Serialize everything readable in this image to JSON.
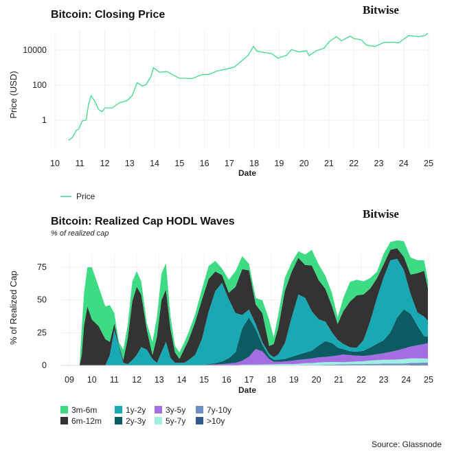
{
  "chart_data": [
    {
      "type": "line",
      "title": "Bitcoin: Closing Price",
      "brand": "Bitwise",
      "xlabel": "Date",
      "ylabel": "Price (USD)",
      "y_scale": "log",
      "yticks": [
        "1",
        "100",
        "10000"
      ],
      "xticks": [
        "10",
        "11",
        "12",
        "13",
        "14",
        "15",
        "16",
        "17",
        "18",
        "19",
        "20",
        "21",
        "22",
        "23",
        "24",
        "25"
      ],
      "legend_position": "bottom-left",
      "color": "#3ddc84",
      "series": [
        {
          "name": "Price",
          "points": [
            [
              2010.55,
              0.07
            ],
            [
              2010.7,
              0.1
            ],
            [
              2010.85,
              0.25
            ],
            [
              2010.95,
              0.3
            ],
            [
              2011.1,
              0.9
            ],
            [
              2011.25,
              1.0
            ],
            [
              2011.35,
              8.0
            ],
            [
              2011.45,
              25.0
            ],
            [
              2011.6,
              12.0
            ],
            [
              2011.75,
              4.0
            ],
            [
              2011.9,
              3.0
            ],
            [
              2012.0,
              5.0
            ],
            [
              2012.3,
              5.0
            ],
            [
              2012.6,
              10.0
            ],
            [
              2012.9,
              13.0
            ],
            [
              2013.1,
              25.0
            ],
            [
              2013.3,
              140.0
            ],
            [
              2013.5,
              90.0
            ],
            [
              2013.65,
              105.0
            ],
            [
              2013.85,
              300.0
            ],
            [
              2013.95,
              1000.0
            ],
            [
              2014.2,
              550.0
            ],
            [
              2014.5,
              600.0
            ],
            [
              2014.75,
              380.0
            ],
            [
              2015.0,
              250.0
            ],
            [
              2015.5,
              240.0
            ],
            [
              2015.9,
              400.0
            ],
            [
              2016.2,
              420.0
            ],
            [
              2016.5,
              650.0
            ],
            [
              2016.9,
              850.0
            ],
            [
              2017.2,
              1100.0
            ],
            [
              2017.5,
              2500.0
            ],
            [
              2017.75,
              5000.0
            ],
            [
              2017.97,
              17000.0
            ],
            [
              2018.1,
              9000.0
            ],
            [
              2018.4,
              7500.0
            ],
            [
              2018.7,
              6500.0
            ],
            [
              2018.96,
              3500.0
            ],
            [
              2019.3,
              5200.0
            ],
            [
              2019.5,
              11000.0
            ],
            [
              2019.8,
              8000.0
            ],
            [
              2020.1,
              9500.0
            ],
            [
              2020.2,
              5000.0
            ],
            [
              2020.5,
              9500.0
            ],
            [
              2020.8,
              13000.0
            ],
            [
              2021.0,
              30000.0
            ],
            [
              2021.3,
              60000.0
            ],
            [
              2021.5,
              35000.0
            ],
            [
              2021.85,
              65000.0
            ],
            [
              2022.0,
              47000.0
            ],
            [
              2022.3,
              40000.0
            ],
            [
              2022.5,
              20000.0
            ],
            [
              2022.85,
              16500.0
            ],
            [
              2023.2,
              28000.0
            ],
            [
              2023.6,
              29000.0
            ],
            [
              2023.8,
              27000.0
            ],
            [
              2024.0,
              43000.0
            ],
            [
              2024.2,
              70000.0
            ],
            [
              2024.6,
              60000.0
            ],
            [
              2024.85,
              70000.0
            ],
            [
              2024.97,
              95000.0
            ]
          ]
        }
      ]
    },
    {
      "type": "area",
      "stacked": true,
      "title": "Bitcoin: Realized Cap HODL Waves",
      "subtitle": "% of realized cap",
      "brand": "Bitwise",
      "xlabel": "Date",
      "ylabel": "% of Realized Cap",
      "ylim": [
        0,
        85
      ],
      "yticks": [
        "0",
        "25",
        "50",
        "75"
      ],
      "xticks": [
        "09",
        "10",
        "11",
        "12",
        "13",
        "14",
        "15",
        "16",
        "17",
        "18",
        "19",
        "20",
        "21",
        "22",
        "23",
        "24",
        "25"
      ],
      "legend_position": "bottom-left",
      "x": [
        2009.0,
        2009.3,
        2009.45,
        2009.55,
        2009.65,
        2009.8,
        2010.0,
        2010.3,
        2010.6,
        2010.8,
        2011.0,
        2011.2,
        2011.4,
        2011.6,
        2011.8,
        2012.0,
        2012.2,
        2012.45,
        2012.7,
        2012.9,
        2013.1,
        2013.3,
        2013.5,
        2013.7,
        2013.9,
        2014.1,
        2014.3,
        2014.6,
        2014.9,
        2015.2,
        2015.5,
        2015.8,
        2016.1,
        2016.4,
        2016.7,
        2017.0,
        2017.3,
        2017.6,
        2017.9,
        2018.1,
        2018.3,
        2018.6,
        2018.9,
        2019.2,
        2019.5,
        2019.8,
        2020.1,
        2020.4,
        2020.7,
        2020.95,
        2021.2,
        2021.5,
        2021.8,
        2022.1,
        2022.4,
        2022.7,
        2023.0,
        2023.3,
        2023.6,
        2023.9,
        2024.2,
        2024.5,
        2024.8,
        2024.97
      ],
      "series": [
        {
          "name": ">10y",
          "color": "#2f5b8f",
          "values": [
            0,
            0,
            0,
            0,
            0,
            0,
            0,
            0,
            0,
            0,
            0,
            0,
            0,
            0,
            0,
            0,
            0,
            0,
            0,
            0,
            0,
            0,
            0,
            0,
            0,
            0,
            0,
            0,
            0,
            0,
            0,
            0,
            0,
            0,
            0,
            0,
            0,
            0,
            0,
            0,
            0,
            0,
            0,
            0,
            0,
            0,
            0,
            0,
            0,
            0,
            0,
            0,
            0,
            0,
            0,
            0,
            0,
            0,
            0,
            0,
            0.5,
            0.5,
            0.6,
            0.6
          ]
        },
        {
          "name": "7y-10y",
          "color": "#6e8fc4",
          "values": [
            0,
            0,
            0,
            0,
            0,
            0,
            0,
            0,
            0,
            0,
            0,
            0,
            0,
            0,
            0,
            0,
            0,
            0,
            0,
            0,
            0,
            0,
            0,
            0,
            0,
            0,
            0,
            0,
            0,
            0,
            0,
            0,
            0,
            0,
            0,
            0,
            0,
            0,
            0,
            0,
            0,
            0,
            0,
            0,
            0.3,
            0.3,
            0.4,
            0.5,
            0.6,
            0.8,
            0.8,
            1,
            1,
            1,
            1.2,
            1.2,
            1.3,
            1.3,
            1.3,
            1.4,
            1.4,
            1.5,
            1.5,
            1.5
          ]
        },
        {
          "name": "5y-7y",
          "color": "#9ff0e2",
          "values": [
            0,
            0,
            0,
            0,
            0,
            0,
            0,
            0,
            0,
            0,
            0,
            0,
            0,
            0,
            0,
            0,
            0,
            0,
            0,
            0,
            0,
            0,
            0,
            0,
            0,
            0,
            0,
            0,
            0,
            0,
            0,
            0,
            0,
            0,
            0.5,
            0.6,
            0.6,
            0.7,
            0.8,
            0.8,
            1,
            1,
            1,
            1.2,
            1.4,
            1.5,
            1.8,
            2,
            2,
            1.8,
            1.6,
            1.8,
            2,
            2.2,
            2.5,
            2.8,
            3,
            3,
            3.2,
            3.5,
            3.5,
            3.4,
            3.2,
            3
          ]
        },
        {
          "name": "3y-5y",
          "color": "#a56de2",
          "values": [
            0,
            0,
            0,
            0,
            0,
            0,
            0,
            0,
            0,
            0,
            0,
            0,
            0,
            0,
            0,
            0,
            0,
            0,
            0,
            0,
            0,
            0,
            0,
            0,
            0,
            0,
            0,
            0,
            0,
            0.5,
            0.8,
            1,
            1.5,
            2,
            3,
            6,
            12,
            10,
            4,
            2,
            1.8,
            2,
            2.5,
            3,
            3,
            3.5,
            4,
            4,
            4.5,
            5,
            6,
            5,
            4.5,
            4,
            4,
            4.5,
            5,
            6,
            7,
            8,
            9,
            10,
            11,
            12
          ]
        },
        {
          "name": "2y-3y",
          "color": "#0c5a62",
          "values": [
            0,
            0,
            0,
            0,
            0,
            0,
            0,
            0,
            0,
            0,
            0,
            0,
            0,
            0,
            0,
            0,
            0,
            0,
            0,
            0,
            0,
            0,
            0,
            0,
            0,
            0,
            0,
            0,
            0,
            0.5,
            1,
            2,
            4,
            8,
            25,
            30,
            15,
            5,
            2,
            1.5,
            1.5,
            2,
            3,
            4,
            5,
            6,
            9,
            12,
            10,
            6,
            4,
            3,
            3,
            4,
            6,
            8,
            10,
            15,
            25,
            30,
            25,
            15,
            6,
            5
          ]
        },
        {
          "name": "1y-2y",
          "color": "#19a9b5",
          "values": [
            0,
            0,
            0,
            0,
            0,
            0,
            0,
            0,
            0,
            8,
            27,
            15,
            2,
            1,
            4,
            8,
            14,
            12,
            5,
            2,
            10,
            18,
            6,
            2,
            2,
            2,
            4,
            8,
            20,
            40,
            55,
            60,
            45,
            30,
            10,
            6,
            4,
            2,
            2,
            2,
            4,
            12,
            30,
            46,
            42,
            30,
            20,
            15,
            8,
            6,
            4,
            3,
            3,
            8,
            20,
            35,
            48,
            55,
            45,
            30,
            15,
            10,
            15,
            12
          ]
        },
        {
          "name": "6m-12m",
          "color": "#333333",
          "values": [
            0,
            0,
            0,
            8,
            30,
            45,
            35,
            30,
            20,
            10,
            5,
            1,
            2,
            20,
            45,
            52,
            40,
            15,
            3,
            20,
            40,
            40,
            22,
            8,
            3,
            10,
            15,
            25,
            30,
            25,
            15,
            6,
            5,
            20,
            35,
            30,
            15,
            22,
            6,
            10,
            20,
            40,
            35,
            28,
            25,
            35,
            30,
            25,
            20,
            12,
            25,
            35,
            40,
            35,
            25,
            15,
            10,
            8,
            8,
            10,
            15,
            30,
            35,
            25
          ]
        },
        {
          "name": "3m-6m",
          "color": "#3ddc84",
          "values": [
            0,
            0,
            0,
            20,
            25,
            30,
            40,
            30,
            25,
            28,
            8,
            2,
            8,
            10,
            15,
            12,
            10,
            5,
            10,
            15,
            20,
            20,
            10,
            5,
            5,
            5,
            6,
            6,
            8,
            10,
            8,
            5,
            10,
            12,
            10,
            5,
            5,
            10,
            20,
            5,
            10,
            10,
            7,
            5,
            8,
            12,
            12,
            10,
            10,
            5,
            10,
            15,
            12,
            10,
            8,
            5,
            8,
            6,
            6,
            12,
            13,
            10,
            8,
            6
          ]
        }
      ],
      "legend": [
        "3m-6m",
        "6m-12m",
        "1y-2y",
        "2y-3y",
        "3y-5y",
        "5y-7y",
        "7y-10y",
        ">10y"
      ]
    }
  ],
  "legend1": {
    "price_label": "Price"
  },
  "source": "Source: Glassnode"
}
